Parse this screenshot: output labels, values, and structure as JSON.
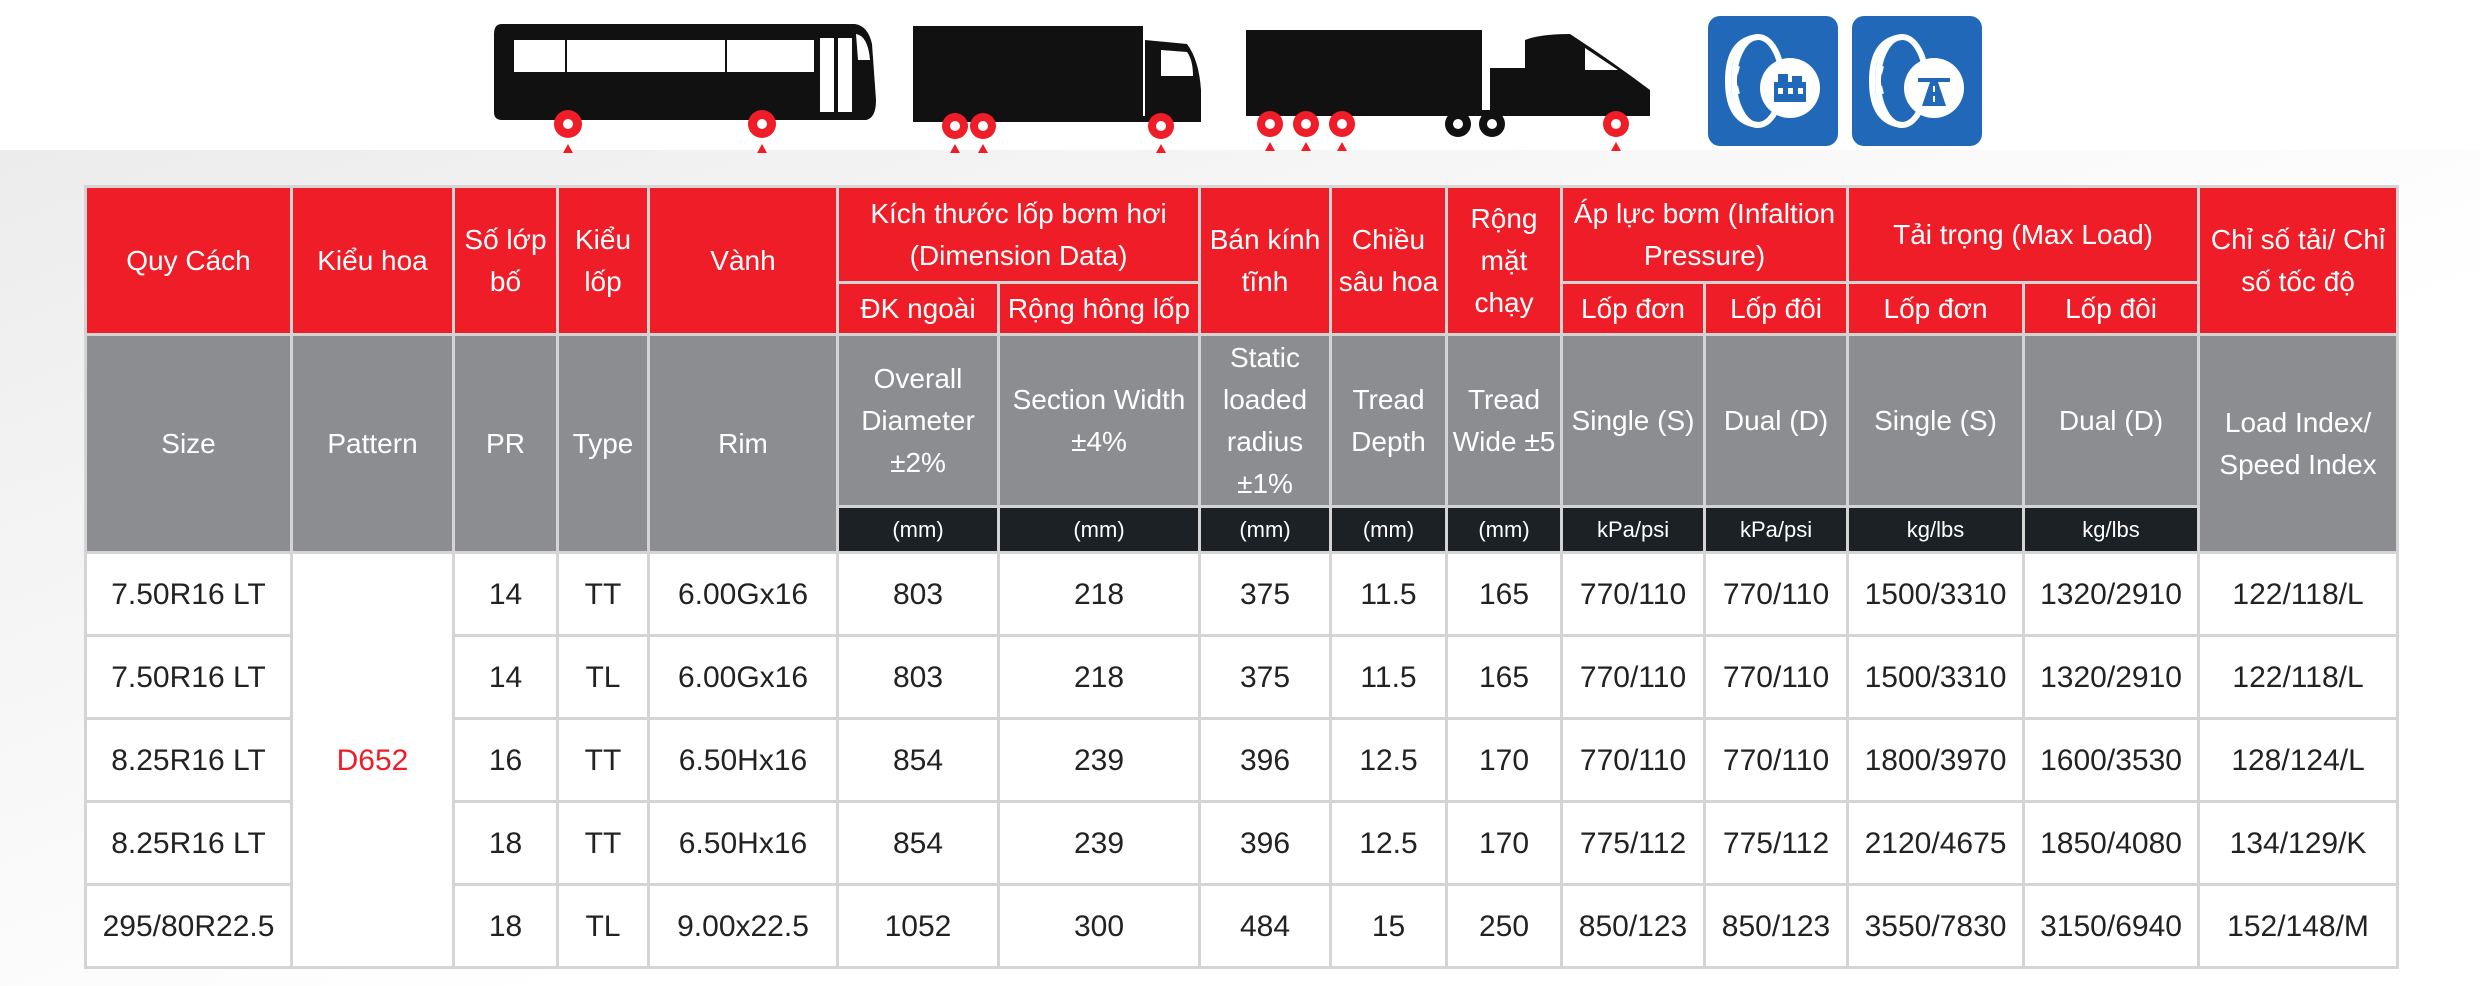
{
  "colors": {
    "header_red": "#ee1d27",
    "header_grey": "#8b8d90",
    "unit_dark": "#1b2125",
    "icon_blue": "#2169b8",
    "pattern_red": "#ee1d27"
  },
  "icons": {
    "vehicles": [
      "bus-icon",
      "box-truck-icon",
      "semi-trailer-truck-icon"
    ],
    "badges": [
      "tire-urban-icon",
      "tire-highway-icon"
    ]
  },
  "header_vi": {
    "size": "Quy Cách",
    "pattern": "Kiểu hoa",
    "pr": "Số lớp bố",
    "type": "Kiểu lốp",
    "rim": "Vành",
    "dimension_group": "Kích thước lốp bơm hơi (Dimension Data)",
    "overall_diameter": "ĐK ngoài",
    "section_width": "Rộng hông lốp",
    "static_radius": "Bán kính tĩnh",
    "tread_depth": "Chiều sâu hoa",
    "tread_wide": "Rộng mặt chạy",
    "pressure_group": "Áp lực bơm (Infaltion Pressure)",
    "pressure_single": "Lốp đơn",
    "pressure_dual": "Lốp đôi",
    "load_group": "Tải trọng (Max Load)",
    "load_single": "Lốp đơn",
    "load_dual": "Lốp đôi",
    "index": "Chỉ số tải/ Chỉ số tốc độ"
  },
  "header_en": {
    "size": "Size",
    "pattern": "Pattern",
    "pr": "PR",
    "type": "Type",
    "rim": "Rim",
    "overall_diameter": "Overall Diameter ±2%",
    "section_width": "Section Width ±4%",
    "static_radius": "Static loaded radius ±1%",
    "tread_depth": "Tread Depth",
    "tread_wide": "Tread Wide ±5",
    "pressure_single": "Single (S)",
    "pressure_dual": "Dual (D)",
    "load_single": "Single (S)",
    "load_dual": "Dual (D)",
    "index": "Load Index/ Speed Index"
  },
  "units": {
    "overall_diameter": "(mm)",
    "section_width": "(mm)",
    "static_radius": "(mm)",
    "tread_depth": "(mm)",
    "tread_wide": "(mm)",
    "pressure_single": "kPa/psi",
    "pressure_dual": "kPa/psi",
    "load_single": "kg/lbs",
    "load_dual": "kg/lbs"
  },
  "pattern_name": "D652",
  "rows": [
    {
      "size": "7.50R16 LT",
      "pr": "14",
      "type": "TT",
      "rim": "6.00Gx16",
      "od": "803",
      "sw": "218",
      "slr": "375",
      "td": "11.5",
      "tw": "165",
      "ps": "770/110",
      "pd": "770/110",
      "ls": "1500/3310",
      "ld": "1320/2910",
      "idx": "122/118/L"
    },
    {
      "size": "7.50R16 LT",
      "pr": "14",
      "type": "TL",
      "rim": "6.00Gx16",
      "od": "803",
      "sw": "218",
      "slr": "375",
      "td": "11.5",
      "tw": "165",
      "ps": "770/110",
      "pd": "770/110",
      "ls": "1500/3310",
      "ld": "1320/2910",
      "idx": "122/118/L"
    },
    {
      "size": "8.25R16 LT",
      "pr": "16",
      "type": "TT",
      "rim": "6.50Hx16",
      "od": "854",
      "sw": "239",
      "slr": "396",
      "td": "12.5",
      "tw": "170",
      "ps": "770/110",
      "pd": "770/110",
      "ls": "1800/3970",
      "ld": "1600/3530",
      "idx": "128/124/L"
    },
    {
      "size": "8.25R16 LT",
      "pr": "18",
      "type": "TT",
      "rim": "6.50Hx16",
      "od": "854",
      "sw": "239",
      "slr": "396",
      "td": "12.5",
      "tw": "170",
      "ps": "775/112",
      "pd": "775/112",
      "ls": "2120/4675",
      "ld": "1850/4080",
      "idx": "134/129/K"
    },
    {
      "size": "295/80R22.5",
      "pr": "18",
      "type": "TL",
      "rim": "9.00x22.5",
      "od": "1052",
      "sw": "300",
      "slr": "484",
      "td": "15",
      "tw": "250",
      "ps": "850/123",
      "pd": "850/123",
      "ls": "3550/7830",
      "ld": "3150/6940",
      "idx": "152/148/M"
    }
  ]
}
